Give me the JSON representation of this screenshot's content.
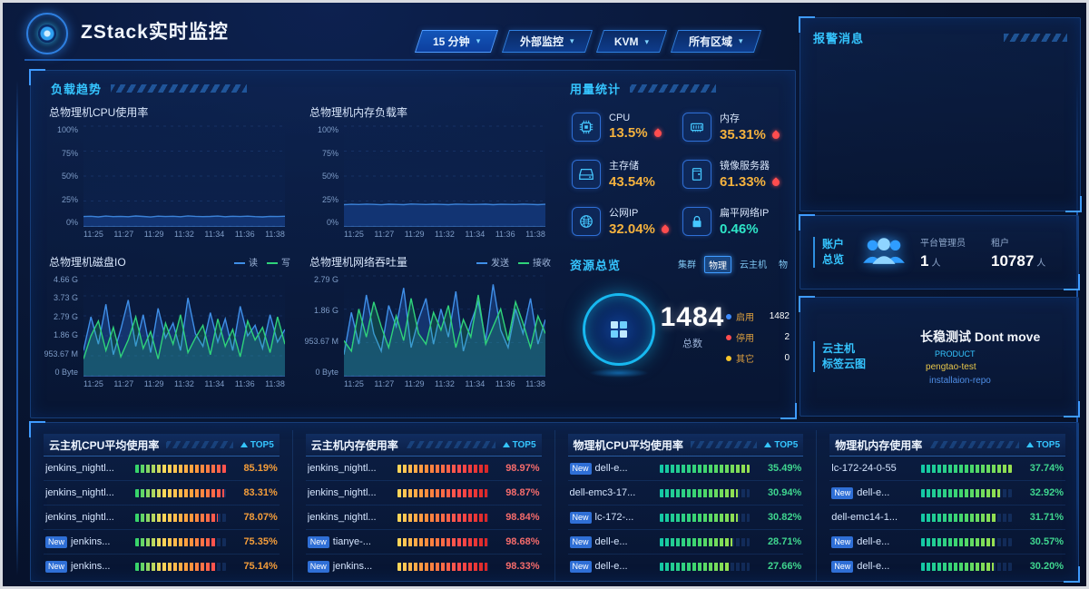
{
  "header": {
    "title": "ZStack实时监控",
    "filters": [
      {
        "name": "time-range",
        "label": "15 分钟",
        "active": true
      },
      {
        "name": "monitor-source",
        "label": "外部监控",
        "active": false
      },
      {
        "name": "hypervisor",
        "label": "KVM",
        "active": false
      },
      {
        "name": "zone",
        "label": "所有区域",
        "active": false
      }
    ]
  },
  "load_trend": {
    "title": "负载趋势"
  },
  "chart_data": [
    {
      "type": "line",
      "title": "总物理机CPU使用率",
      "ylabel": "%",
      "ylim": [
        0,
        100
      ],
      "yticks": [
        "100%",
        "75%",
        "50%",
        "25%",
        "0%"
      ],
      "xticks": [
        "11:25",
        "11:27",
        "11:29",
        "11:32",
        "11:34",
        "11:36",
        "11:38"
      ],
      "series": [
        {
          "name": "CPU使用率",
          "color": "#3b82d8",
          "fill": "rgba(24,70,150,0.55)",
          "values": [
            9.6,
            9.9,
            9.3,
            10.1,
            9.5,
            9.8,
            9.4,
            10.2,
            9.7,
            9.2,
            10.0,
            9.6,
            9.9,
            9.4,
            10.3,
            9.8,
            9.5,
            9.7,
            10.1,
            9.4,
            9.9,
            9.6,
            10.0,
            9.5,
            9.3,
            9.8,
            9.6,
            9.9
          ]
        }
      ]
    },
    {
      "type": "line",
      "title": "总物理机内存负载率",
      "ylabel": "%",
      "ylim": [
        0,
        100
      ],
      "yticks": [
        "100%",
        "75%",
        "50%",
        "25%",
        "0%"
      ],
      "xticks": [
        "11:25",
        "11:27",
        "11:29",
        "11:32",
        "11:34",
        "11:36",
        "11:38"
      ],
      "series": [
        {
          "name": "内存负载率",
          "color": "#3b82d8",
          "fill": "rgba(24,70,150,0.55)",
          "values": [
            21.8,
            22.1,
            21.9,
            22.3,
            22.0,
            21.7,
            22.2,
            22.0,
            21.8,
            22.4,
            22.1,
            21.9,
            22.2,
            22.0,
            21.8,
            22.3,
            22.1,
            21.9,
            22.0,
            22.2,
            21.8,
            22.1,
            22.0,
            21.9,
            22.3,
            22.0,
            21.8,
            22.1
          ]
        }
      ]
    },
    {
      "type": "line",
      "title": "总物理机磁盘IO",
      "ylabel": "bytes",
      "ylim": [
        0,
        4.66
      ],
      "yticks": [
        "4.66 G",
        "3.73 G",
        "2.79 G",
        "1.86 G",
        "953.67 M",
        "0 Byte"
      ],
      "xticks": [
        "11:25",
        "11:27",
        "11:29",
        "11:32",
        "11:34",
        "11:36",
        "11:38"
      ],
      "series": [
        {
          "name": "读",
          "color": "#3f8fe8",
          "fill": "rgba(45,120,230,0.28)",
          "values": [
            1.2,
            2.8,
            1.5,
            3.4,
            1.0,
            2.2,
            3.6,
            1.4,
            2.9,
            1.1,
            3.2,
            1.8,
            2.5,
            1.2,
            3.7,
            2.0,
            1.4,
            3.0,
            1.6,
            2.7,
            1.2,
            3.3,
            1.9,
            2.4,
            1.3,
            2.9,
            1.6,
            2.2
          ]
        },
        {
          "name": "写",
          "color": "#2fd37a",
          "fill": "rgba(40,200,120,0.22)",
          "values": [
            0.8,
            1.9,
            2.6,
            1.2,
            2.3,
            0.9,
            1.7,
            2.8,
            1.3,
            2.1,
            0.8,
            2.5,
            1.5,
            2.9,
            1.1,
            1.8,
            2.4,
            1.0,
            2.7,
            1.4,
            2.2,
            0.9,
            2.6,
            1.7,
            2.3,
            1.1,
            2.8,
            1.5
          ]
        }
      ]
    },
    {
      "type": "line",
      "title": "总物理机网络吞吐量",
      "ylabel": "bytes",
      "ylim": [
        0,
        2.79
      ],
      "yticks": [
        "2.79 G",
        "1.86 G",
        "953.67 M",
        "0 Byte"
      ],
      "xticks": [
        "11:25",
        "11:27",
        "11:29",
        "11:32",
        "11:34",
        "11:36",
        "11:38"
      ],
      "series": [
        {
          "name": "发送",
          "color": "#3f8fe8",
          "fill": "rgba(45,120,230,0.28)",
          "values": [
            0.6,
            1.8,
            0.9,
            2.3,
            1.2,
            0.7,
            2.0,
            1.4,
            2.5,
            0.8,
            1.6,
            2.2,
            0.9,
            1.9,
            1.1,
            2.4,
            0.7,
            1.5,
            2.1,
            1.0,
            2.6,
            1.3,
            0.8,
            1.9,
            1.2,
            2.2,
            0.9,
            1.6
          ]
        },
        {
          "name": "接收",
          "color": "#2fd37a",
          "fill": "rgba(40,200,120,0.22)",
          "values": [
            1.0,
            0.7,
            1.9,
            1.1,
            2.1,
            1.4,
            0.8,
            1.7,
            1.0,
            2.2,
            1.2,
            0.9,
            1.8,
            1.3,
            2.0,
            0.8,
            1.6,
            1.1,
            2.3,
            0.9,
            1.4,
            1.9,
            1.0,
            2.1,
            1.5,
            0.8,
            1.7,
            1.2
          ]
        }
      ]
    }
  ],
  "usage_stats": {
    "title": "用量统计",
    "items": [
      {
        "label": "CPU",
        "value": "13.5%",
        "icon": "cpu-icon",
        "alert": true,
        "value_color": "#f5b23e"
      },
      {
        "label": "内存",
        "value": "35.31%",
        "icon": "memory-icon",
        "alert": true,
        "value_color": "#f5b23e"
      },
      {
        "label": "主存储",
        "value": "43.54%",
        "icon": "storage-icon",
        "alert": false,
        "value_color": "#f5b23e"
      },
      {
        "label": "镜像服务器",
        "value": "61.33%",
        "icon": "image-server-icon",
        "alert": true,
        "value_color": "#f5b23e"
      },
      {
        "label": "公网IP",
        "value": "32.04%",
        "icon": "public-ip-icon",
        "alert": true,
        "value_color": "#f5b23e"
      },
      {
        "label": "扁平网络IP",
        "value": "0.46%",
        "icon": "flat-network-icon",
        "alert": false,
        "value_color": "#2ee6c8"
      }
    ]
  },
  "resource_overview": {
    "title": "资源总览",
    "tabs": [
      {
        "label": "集群",
        "active": false
      },
      {
        "label": "物理",
        "active": true
      },
      {
        "label": "云主机",
        "active": false
      },
      {
        "label": "物",
        "active": false
      }
    ],
    "total": "1484",
    "total_label": "总数",
    "legend": [
      {
        "label": "启用",
        "value": "1482",
        "color": "#3f8cff"
      },
      {
        "label": "停用",
        "value": "2",
        "color": "#ff4d4f"
      },
      {
        "label": "其它",
        "value": "0",
        "color": "#f7c52a"
      }
    ]
  },
  "alarm": {
    "title": "报警消息"
  },
  "account": {
    "title_lines": [
      "账户",
      "总览"
    ],
    "stats": [
      {
        "label": "平台管理员",
        "value": "1",
        "unit": "人"
      },
      {
        "label": "租户",
        "value": "10787",
        "unit": "人"
      }
    ]
  },
  "tag_cloud": {
    "title_lines": [
      "云主机",
      "标签云图"
    ],
    "tags": [
      {
        "text": "长稳测试 Dont move",
        "color": "#f0f4fa",
        "size": 14,
        "weight": "bold"
      },
      {
        "text": "PRODUCT",
        "color": "#35c5ff",
        "size": 9
      },
      {
        "text": "pengtao-test",
        "color": "#e8c74a",
        "size": 10
      },
      {
        "text": "installaion-repo",
        "color": "#4f8fe8",
        "size": 10
      }
    ]
  },
  "top5_tables": [
    {
      "title": "云主机CPU平均使用率",
      "top_label": "TOP5",
      "value_color": "#f49d3a",
      "bar_gradient": [
        "#2bd46b",
        "#ffd95a",
        "#ff9a3c",
        "#ff4f4f"
      ],
      "rows": [
        {
          "name": "jenkins_nightl...",
          "new": false,
          "pct": 85.19,
          "value": "85.19%"
        },
        {
          "name": "jenkins_nightl...",
          "new": false,
          "pct": 83.31,
          "value": "83.31%"
        },
        {
          "name": "jenkins_nightl...",
          "new": false,
          "pct": 78.07,
          "value": "78.07%"
        },
        {
          "name": "jenkins...",
          "new": true,
          "pct": 75.35,
          "value": "75.35%"
        },
        {
          "name": "jenkins...",
          "new": true,
          "pct": 75.14,
          "value": "75.14%"
        }
      ]
    },
    {
      "title": "云主机内存使用率",
      "top_label": "TOP5",
      "value_color": "#f56c6c",
      "bar_gradient": [
        "#ffd95a",
        "#ff8a3c",
        "#ff4f4f",
        "#d92626"
      ],
      "rows": [
        {
          "name": "jenkins_nightl...",
          "new": false,
          "pct": 98.97,
          "value": "98.97%"
        },
        {
          "name": "jenkins_nightl...",
          "new": false,
          "pct": 98.87,
          "value": "98.87%"
        },
        {
          "name": "jenkins_nightl...",
          "new": false,
          "pct": 98.84,
          "value": "98.84%"
        },
        {
          "name": "tianye-...",
          "new": true,
          "pct": 98.68,
          "value": "98.68%"
        },
        {
          "name": "jenkins...",
          "new": true,
          "pct": 98.33,
          "value": "98.33%"
        }
      ]
    },
    {
      "title": "物理机CPU平均使用率",
      "top_label": "TOP5",
      "value_color": "#3fd68f",
      "bar_gradient": [
        "#12c8a8",
        "#3fd66e",
        "#9ae04f"
      ],
      "rows": [
        {
          "name": "dell-e...",
          "new": true,
          "pct": 35.49,
          "value": "35.49%"
        },
        {
          "name": "dell-emc3-17...",
          "new": false,
          "pct": 30.94,
          "value": "30.94%"
        },
        {
          "name": "lc-172-...",
          "new": true,
          "pct": 30.82,
          "value": "30.82%"
        },
        {
          "name": "dell-e...",
          "new": true,
          "pct": 28.71,
          "value": "28.71%"
        },
        {
          "name": "dell-e...",
          "new": true,
          "pct": 27.66,
          "value": "27.66%"
        }
      ]
    },
    {
      "title": "物理机内存使用率",
      "top_label": "TOP5",
      "value_color": "#3fd68f",
      "bar_gradient": [
        "#12c8a8",
        "#3fd66e",
        "#9ae04f"
      ],
      "rows": [
        {
          "name": "lc-172-24-0-55",
          "new": false,
          "pct": 37.74,
          "value": "37.74%"
        },
        {
          "name": "dell-e...",
          "new": true,
          "pct": 32.92,
          "value": "32.92%"
        },
        {
          "name": "dell-emc14-1...",
          "new": false,
          "pct": 31.71,
          "value": "31.71%"
        },
        {
          "name": "dell-e...",
          "new": true,
          "pct": 30.57,
          "value": "30.57%"
        },
        {
          "name": "dell-e...",
          "new": true,
          "pct": 30.2,
          "value": "30.20%"
        }
      ]
    }
  ]
}
